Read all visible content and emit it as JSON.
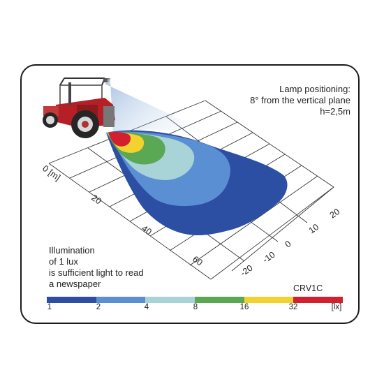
{
  "lamp_text": {
    "line1": "Lamp positioning:",
    "line2": "8° from the vertical plane",
    "line3": "h=2,5m"
  },
  "note_text": {
    "line1": "Illumination",
    "line2": "of 1 lux",
    "line3": "is sufficient light to read",
    "line4": "a newspaper"
  },
  "model": "CRV1C",
  "distance_axis": {
    "labels": [
      "0 [m]",
      "20",
      "40",
      "60"
    ]
  },
  "lateral_axis": {
    "labels": [
      "20",
      "10",
      "0",
      "-10",
      "-20"
    ]
  },
  "scale": {
    "colors": [
      "#2c4fa3",
      "#5b8fd4",
      "#a8d4d8",
      "#5aa853",
      "#f2d22e",
      "#d3202f"
    ],
    "ticks": [
      "1",
      "2",
      "4",
      "8",
      "16",
      "32",
      "[lx]"
    ]
  },
  "zones": [
    {
      "lux": "1",
      "color": "#2c4fa3"
    },
    {
      "lux": "2",
      "color": "#5b8fd4"
    },
    {
      "lux": "4",
      "color": "#a8d4d8"
    },
    {
      "lux": "8",
      "color": "#5aa853"
    },
    {
      "lux": "16",
      "color": "#f2d22e"
    },
    {
      "lux": "32",
      "color": "#d3202f"
    }
  ]
}
